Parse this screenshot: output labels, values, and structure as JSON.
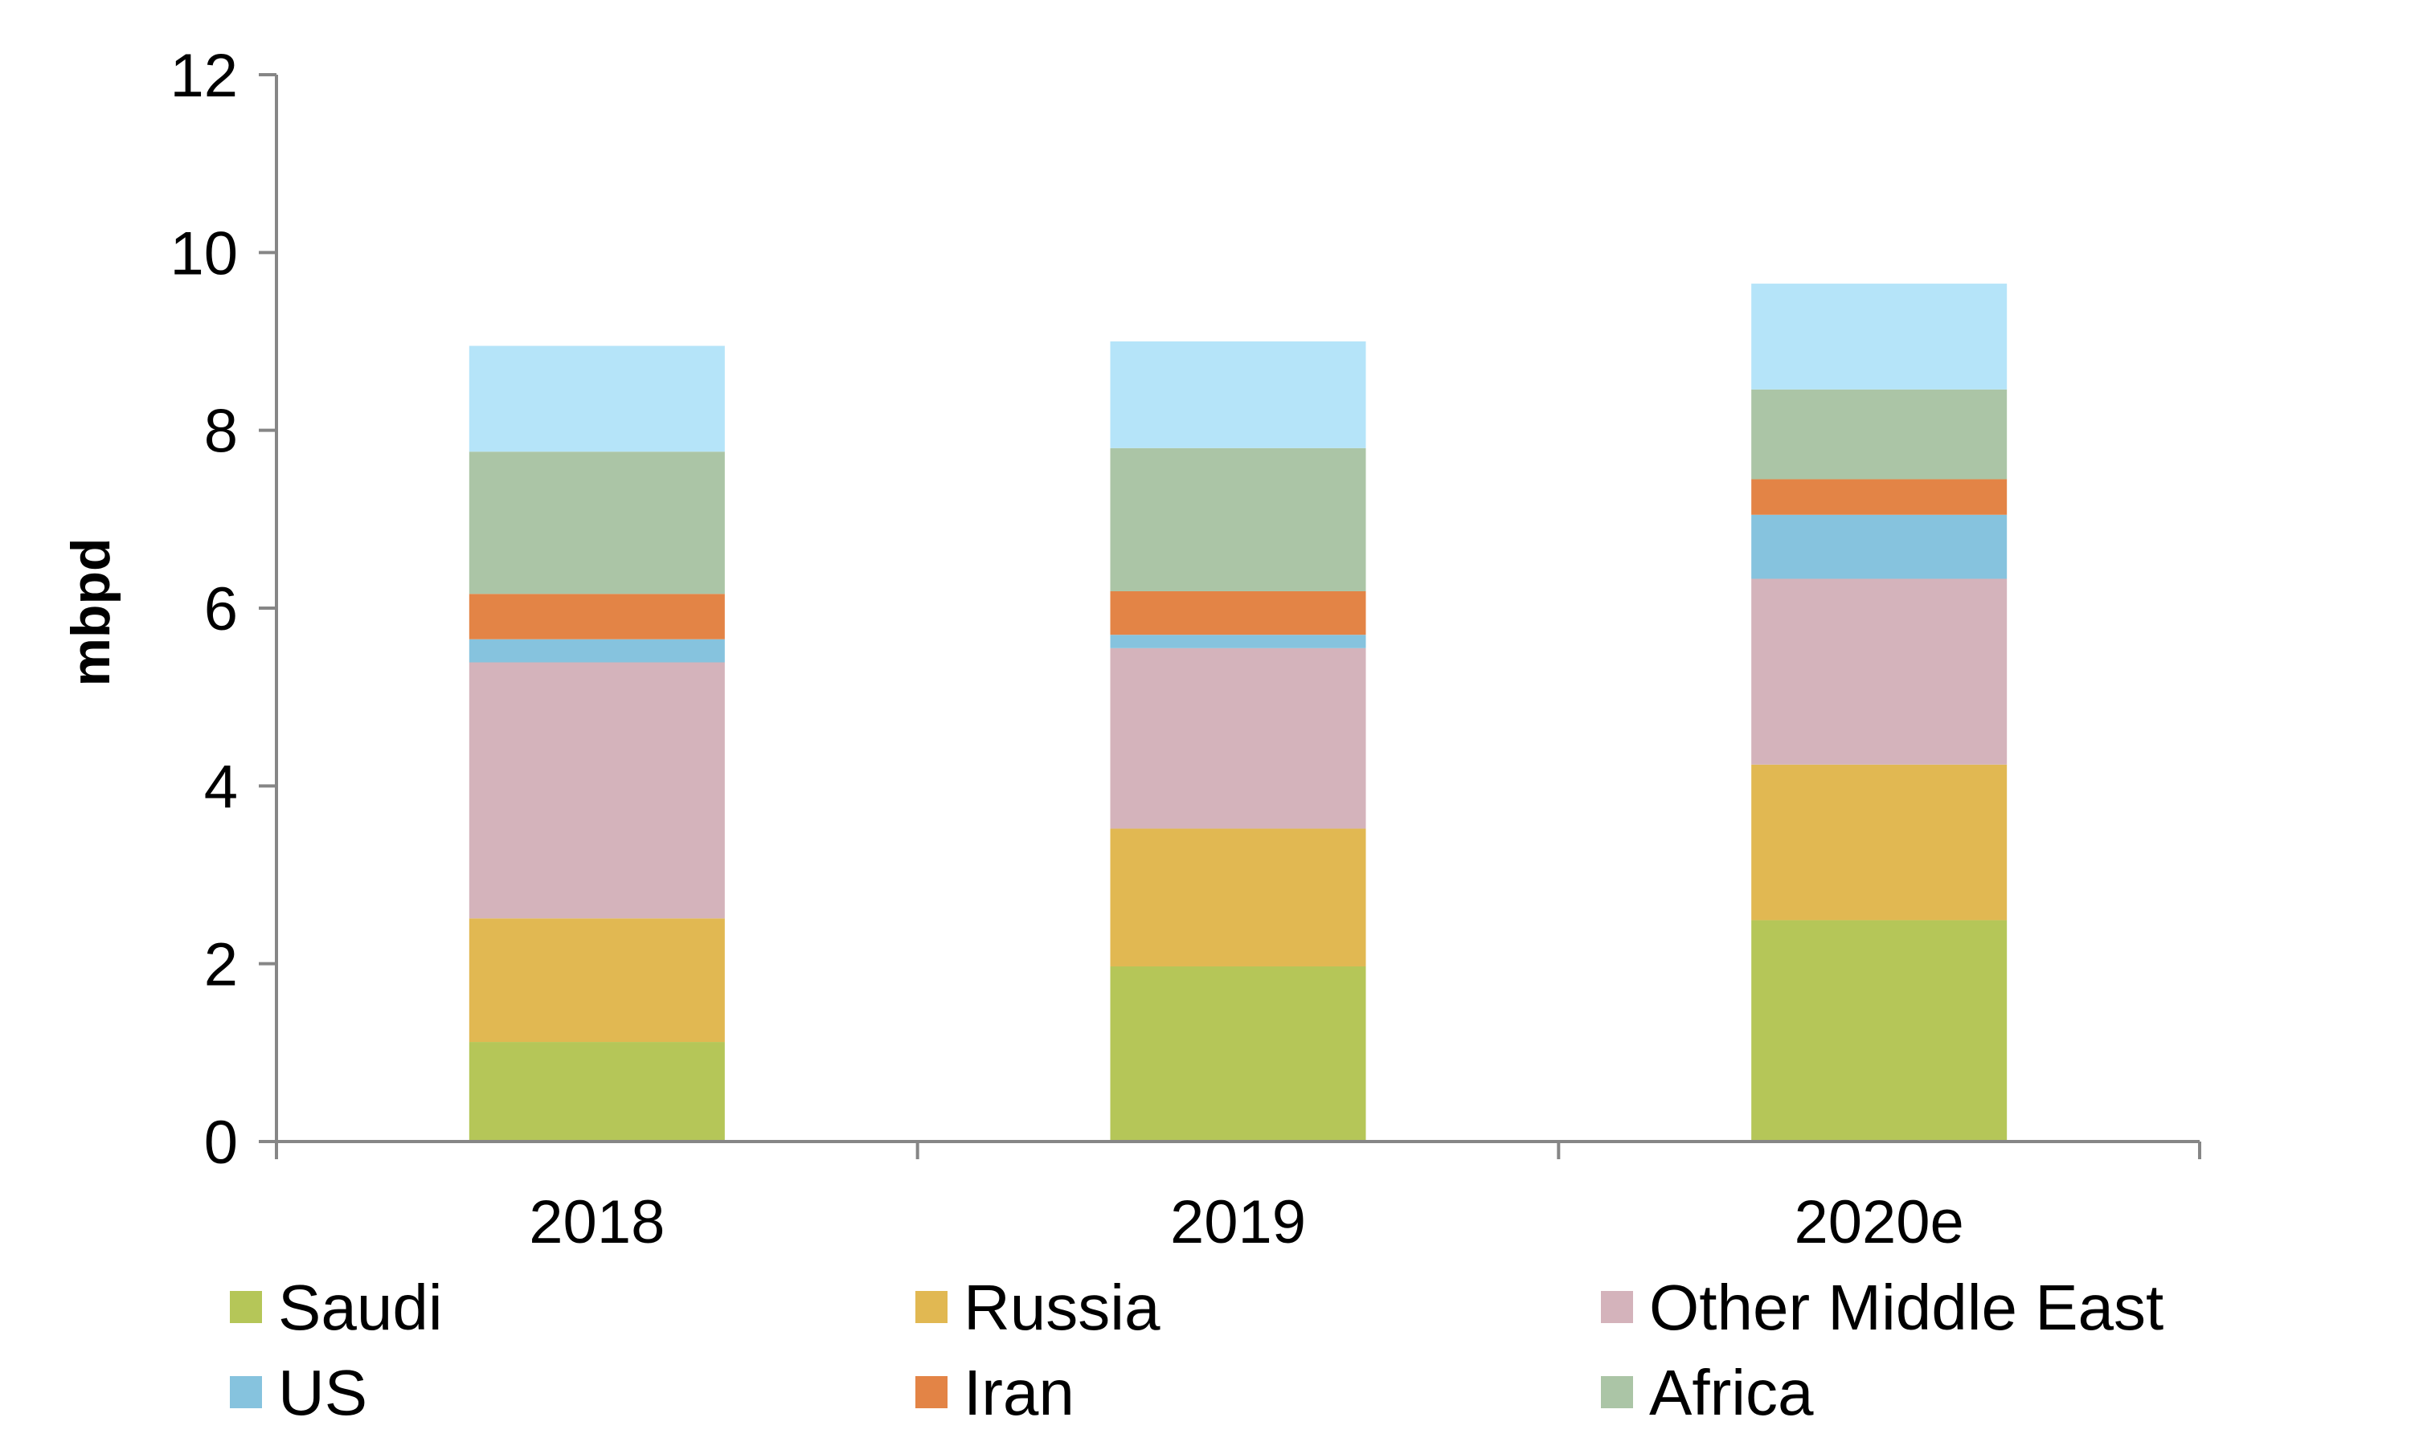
{
  "chart_data": {
    "type": "bar",
    "stacked": true,
    "title": "",
    "xlabel": "",
    "ylabel": "mbpd",
    "ylim": [
      0,
      12
    ],
    "yticks": [
      0,
      2,
      4,
      6,
      8,
      10,
      12
    ],
    "grid": false,
    "legend_placement": "bottom",
    "categories": [
      "2018",
      "2019",
      "2020e"
    ],
    "series": [
      {
        "name": "Saudi",
        "color": "#b5c658",
        "values": [
          1.12,
          1.97,
          2.49
        ]
      },
      {
        "name": "Russia",
        "color": "#e1b852",
        "values": [
          1.39,
          1.55,
          1.75
        ]
      },
      {
        "name": "Other Middle East",
        "color": "#d4b3bb",
        "values": [
          2.88,
          2.03,
          2.09
        ]
      },
      {
        "name": "US",
        "color": "#86c3de",
        "values": [
          0.26,
          0.15,
          0.72
        ]
      },
      {
        "name": "Iran",
        "color": "#e38446",
        "values": [
          0.51,
          0.49,
          0.4
        ]
      },
      {
        "name": "Africa",
        "color": "#abc5a6",
        "values": [
          1.6,
          1.61,
          1.01
        ]
      },
      {
        "color": "#b5e4f9",
        "values": [
          1.19,
          1.2,
          1.19
        ]
      }
    ]
  }
}
